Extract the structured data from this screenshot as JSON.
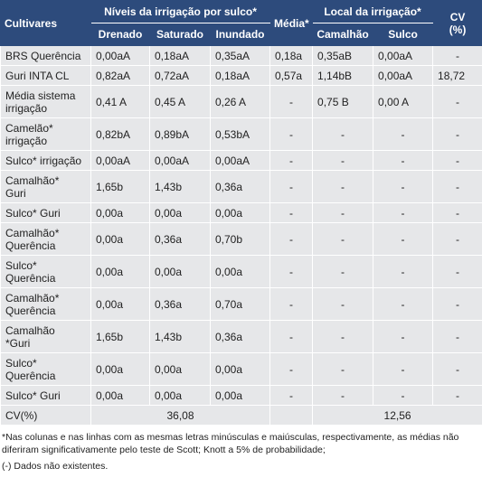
{
  "table": {
    "header": {
      "cultivares": "Cultivares",
      "niveis": "Níveis da irrigação por sulco*",
      "media": "Média*",
      "local": "Local da irrigação*",
      "cv": "CV\n(%)",
      "drenado": "Drenado",
      "saturado": "Saturado",
      "inundado": "Inundado",
      "camalhao": "Camalhão",
      "sulco": "Sulco"
    },
    "rows": [
      [
        "BRS Querência",
        "0,00aA",
        "0,18aA",
        "0,35aA",
        "0,18a",
        "0,35aB",
        "0,00aA",
        "-"
      ],
      [
        "Guri INTA CL",
        "0,82aA",
        "0,72aA",
        "0,18aA",
        "0,57a",
        "1,14bB",
        "0,00aA",
        "18,72"
      ],
      [
        "Média sistema\nirrigação",
        "0,41 A",
        "0,45  A",
        "0,26 A",
        "-",
        "0,75 B",
        "0,00  A",
        "-"
      ],
      [
        "Camelão*\nirrigação",
        "0,82bA",
        "0,89bA",
        "0,53bA",
        "-",
        "-",
        "-",
        "-"
      ],
      [
        "Sulco* irrigação",
        "0,00aA",
        "0,00aA",
        "0,00aA",
        "-",
        "-",
        "-",
        "-"
      ],
      [
        "Camalhão*\nGuri",
        "1,65b",
        "1,43b",
        "0,36a",
        "-",
        "-",
        "-",
        "-"
      ],
      [
        "Sulco* Guri",
        "0,00a",
        "0,00a",
        "0,00a",
        "-",
        "-",
        "-",
        "-"
      ],
      [
        "Camalhão*\nQuerência",
        "0,00a",
        "0,36a",
        "0,70b",
        "-",
        "-",
        "-",
        "-"
      ],
      [
        "Sulco*\nQuerência",
        "0,00a",
        "0,00a",
        "0,00a",
        "-",
        "-",
        "-",
        "-"
      ],
      [
        "Camalhão*\nQuerência",
        "0,00a",
        "0,36a",
        "0,70a",
        "-",
        "-",
        "-",
        "-"
      ],
      [
        "Camalhão\n*Guri",
        "1,65b",
        "1,43b",
        "0,36a",
        "-",
        "-",
        "-",
        "-"
      ],
      [
        "Sulco*\nQuerência",
        "0,00a",
        "0,00a",
        "0,00a",
        "-",
        "-",
        "-",
        "-"
      ],
      [
        "Sulco* Guri",
        "0,00a",
        "0,00a",
        "0,00a",
        "-",
        "-",
        "-",
        "-"
      ]
    ],
    "cv_row": {
      "label": "CV(%)",
      "niveis": "36,08",
      "local": "12,56"
    }
  },
  "notes": [
    "*Nas colunas e nas linhas com as mesmas letras minúsculas e maiúsculas, respectivamente, as médias não diferiram significativamente pelo teste de Scott; Knott a 5% de probabilidade;",
    "(-) Dados não existentes."
  ]
}
